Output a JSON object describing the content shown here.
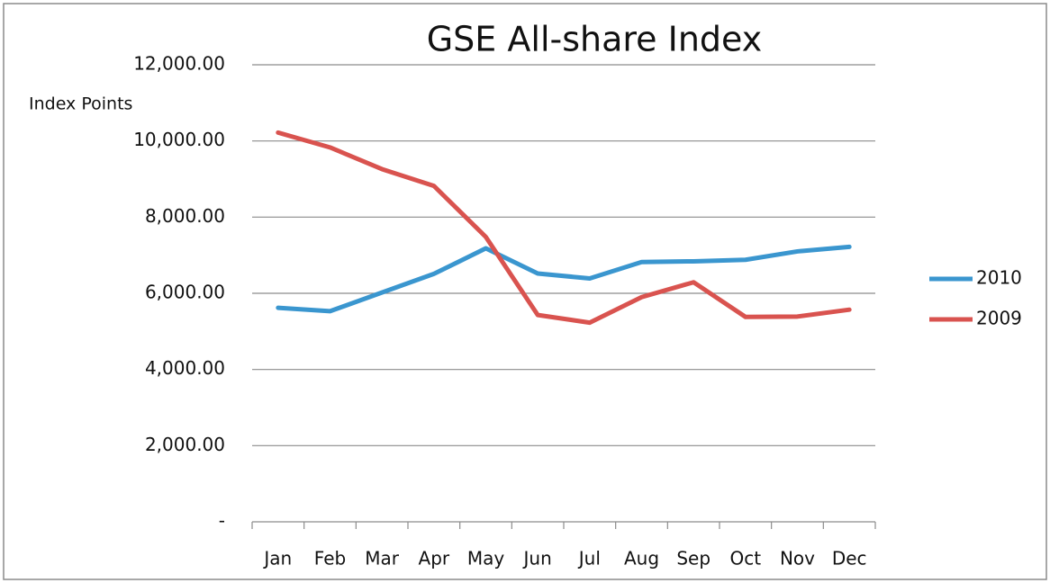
{
  "chart_data": {
    "type": "line",
    "title": "GSE All-share Index",
    "y_label": "Index Points",
    "categories": [
      "Jan",
      "Feb",
      "Mar",
      "Apr",
      "May",
      "Jun",
      "Jul",
      "Aug",
      "Sep",
      "Oct",
      "Nov",
      "Dec"
    ],
    "series": [
      {
        "name": "2010",
        "color": "#3a96cf",
        "values": [
          5620,
          5530,
          6020,
          6510,
          7180,
          6520,
          6390,
          6820,
          6840,
          6880,
          7100,
          7220
        ]
      },
      {
        "name": "2009",
        "color": "#d9534f",
        "values": [
          10220,
          9830,
          9260,
          8820,
          7480,
          5430,
          5230,
          5900,
          6290,
          5380,
          5390,
          5570
        ]
      }
    ],
    "ylim": [
      0,
      12000
    ],
    "yticks": [
      {
        "value": 0,
        "label": "-"
      },
      {
        "value": 2000,
        "label": "2,000.00"
      },
      {
        "value": 4000,
        "label": "4,000.00"
      },
      {
        "value": 6000,
        "label": "6,000.00"
      },
      {
        "value": 8000,
        "label": "8,000.00"
      },
      {
        "value": 10000,
        "label": "10,000.00"
      },
      {
        "value": 12000,
        "label": "12,000.00"
      }
    ],
    "grid": true,
    "legend": "right"
  }
}
